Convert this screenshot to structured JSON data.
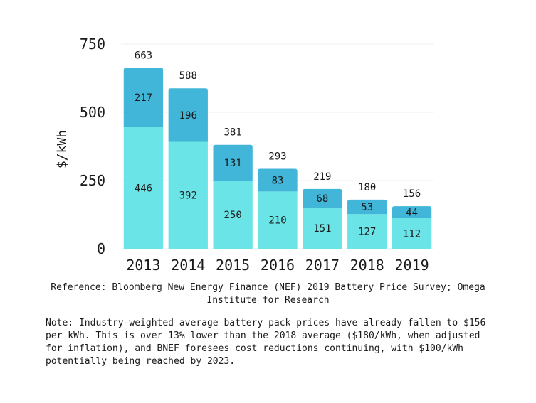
{
  "chart_data": {
    "type": "bar",
    "stacked": true,
    "categories": [
      "2013",
      "2014",
      "2015",
      "2016",
      "2017",
      "2018",
      "2019"
    ],
    "series": [
      {
        "values": [
          446,
          392,
          250,
          210,
          151,
          127,
          112
        ],
        "color": "#6ae4e6"
      },
      {
        "values": [
          217,
          196,
          131,
          83,
          68,
          53,
          44
        ],
        "color": "#41b6d8"
      }
    ],
    "totals": [
      663,
      588,
      381,
      293,
      219,
      180,
      156
    ],
    "ylabel": "$/kWh",
    "ylim": [
      0,
      750
    ],
    "yticks": [
      0,
      250,
      500,
      750
    ],
    "grid": true,
    "legend": "none"
  },
  "reference": "Reference: Bloomberg New Energy Finance (NEF) 2019 Battery Price Survey; Omega Institute for Research",
  "note": "Note: Industry-weighted average battery pack prices have already fallen to $156 per kWh. This is over 13% lower than the 2018 average ($180/kWh, when adjusted for inflation), and BNEF foresees cost reductions continuing, with $100/kWh potentially being reached by 2023."
}
